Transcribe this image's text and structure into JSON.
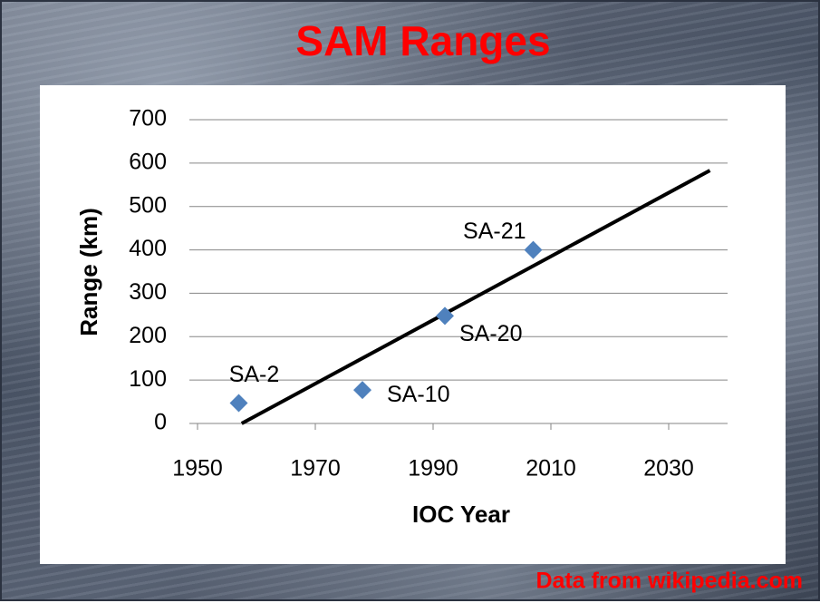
{
  "chart_data": {
    "type": "scatter",
    "title": "SAM Ranges",
    "x_label": "IOC Year",
    "y_label": "Range (km)",
    "x": [
      1957,
      1978,
      1992,
      2007
    ],
    "values": [
      47,
      77,
      248,
      400
    ],
    "point_labels": [
      "SA-2",
      "SA-10",
      "SA-20",
      "SA-21"
    ],
    "color": "#4f81bd",
    "trendline": {
      "x": [
        1957.5,
        2037
      ],
      "values": [
        0,
        583
      ],
      "color": "#000000"
    },
    "xlim": [
      1950,
      2040
    ],
    "xticks": [
      1950,
      1970,
      1990,
      2010,
      2030
    ],
    "ylim": [
      0,
      700
    ],
    "yticks": [
      0,
      100,
      200,
      300,
      400,
      500,
      600,
      700
    ],
    "grid": true,
    "source": "Data from wikipedia.com"
  }
}
